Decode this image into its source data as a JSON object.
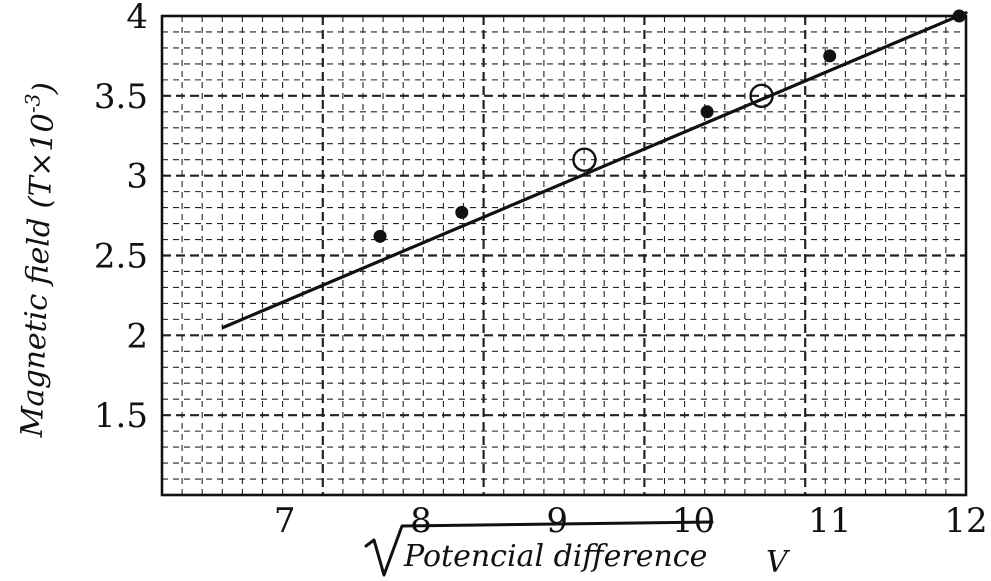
{
  "chart_data": {
    "type": "scatter",
    "xlabel": "Potencial difference",
    "xunit": "V",
    "ylabel": "Magnetic field (T×10",
    "ylabel_exp": "-3",
    "ylabel_close": ")",
    "x_ticks": [
      "7",
      "8",
      "9",
      "10",
      "11",
      "12"
    ],
    "y_ticks": [
      "1.5",
      "2",
      "2.5",
      "3",
      "3.5",
      "4"
    ],
    "xlim": [
      6.1,
      12
    ],
    "ylim": [
      1.0,
      4.0
    ],
    "grid": true,
    "points": [
      {
        "x": 7.7,
        "y": 2.62,
        "style": "filled"
      },
      {
        "x": 8.3,
        "y": 2.77,
        "style": "filled"
      },
      {
        "x": 9.2,
        "y": 3.1,
        "style": "open"
      },
      {
        "x": 10.1,
        "y": 3.4,
        "style": "filled"
      },
      {
        "x": 10.5,
        "y": 3.5,
        "style": "open"
      },
      {
        "x": 11.0,
        "y": 3.75,
        "style": "filled"
      },
      {
        "x": 11.95,
        "y": 4.0,
        "style": "filled"
      }
    ],
    "fit_line": {
      "x": [
        6.55,
        12.0
      ],
      "y": [
        2.05,
        4.02
      ]
    },
    "colors": {
      "ink": "#111111",
      "grid": "#222222",
      "background": "#ffffff"
    }
  }
}
